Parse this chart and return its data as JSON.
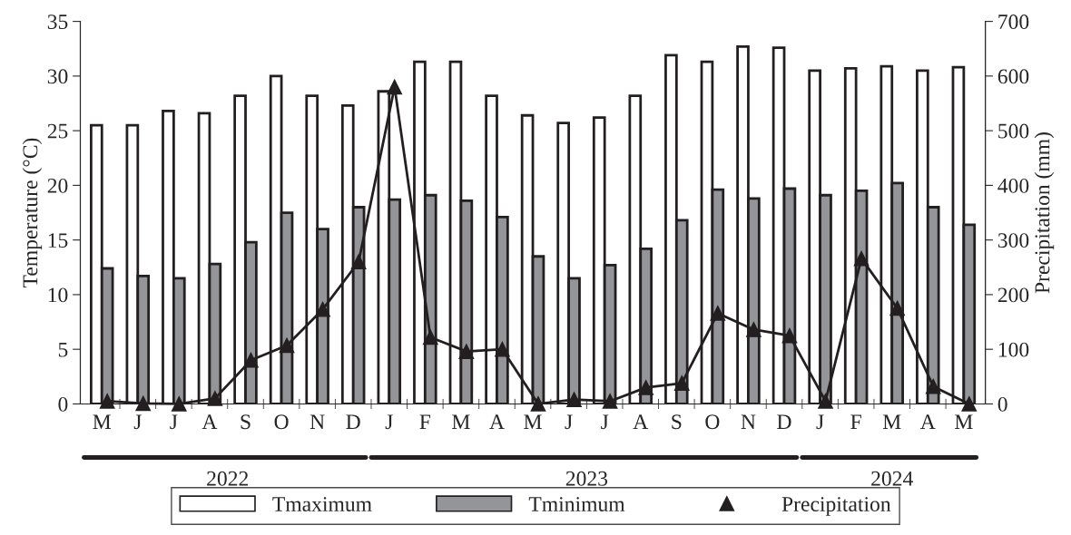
{
  "chart_data": {
    "type": "bar",
    "categories": [
      "M",
      "J",
      "J",
      "A",
      "S",
      "O",
      "N",
      "D",
      "J",
      "F",
      "M",
      "A",
      "M",
      "J",
      "J",
      "A",
      "S",
      "O",
      "N",
      "D",
      "J",
      "F",
      "M",
      "A",
      "M"
    ],
    "series": [
      {
        "name": "Tmaximum",
        "color": "#ffffff",
        "values": [
          25.5,
          25.5,
          26.8,
          26.6,
          28.2,
          30.0,
          28.2,
          27.3,
          28.6,
          31.3,
          31.3,
          28.2,
          26.4,
          25.7,
          26.2,
          28.2,
          31.9,
          31.3,
          32.7,
          32.6,
          30.5,
          30.7,
          30.9,
          30.5,
          30.8
        ]
      },
      {
        "name": "Tminimum",
        "color": "#939598",
        "values": [
          12.4,
          11.7,
          11.5,
          12.8,
          14.8,
          17.5,
          16.0,
          18.0,
          18.7,
          19.1,
          18.6,
          17.1,
          13.5,
          11.5,
          12.7,
          14.2,
          16.8,
          19.6,
          18.8,
          19.7,
          19.1,
          19.5,
          20.2,
          18.0,
          16.4
        ]
      },
      {
        "name": "Precipitation",
        "type": "line",
        "axis": "y2",
        "color": "#231f20",
        "values": [
          5,
          1,
          0,
          10,
          80,
          107,
          173,
          260,
          580,
          122,
          96,
          100,
          0,
          8,
          5,
          30,
          38,
          166,
          136,
          125,
          5,
          266,
          175,
          32,
          0
        ]
      }
    ],
    "ylabel": "Temperature (°C)",
    "y2label": "Precipitation (mm)",
    "ylim": [
      0,
      35
    ],
    "yticks": [
      0,
      5,
      10,
      15,
      20,
      25,
      30,
      35
    ],
    "y2lim": [
      0,
      700
    ],
    "y2ticks": [
      0,
      100,
      200,
      300,
      400,
      500,
      600,
      700
    ],
    "annotations": [
      "2022",
      "2023",
      "2024"
    ],
    "marker": "triangle",
    "line_style": "solid",
    "grid": false,
    "legend": "bottom"
  }
}
